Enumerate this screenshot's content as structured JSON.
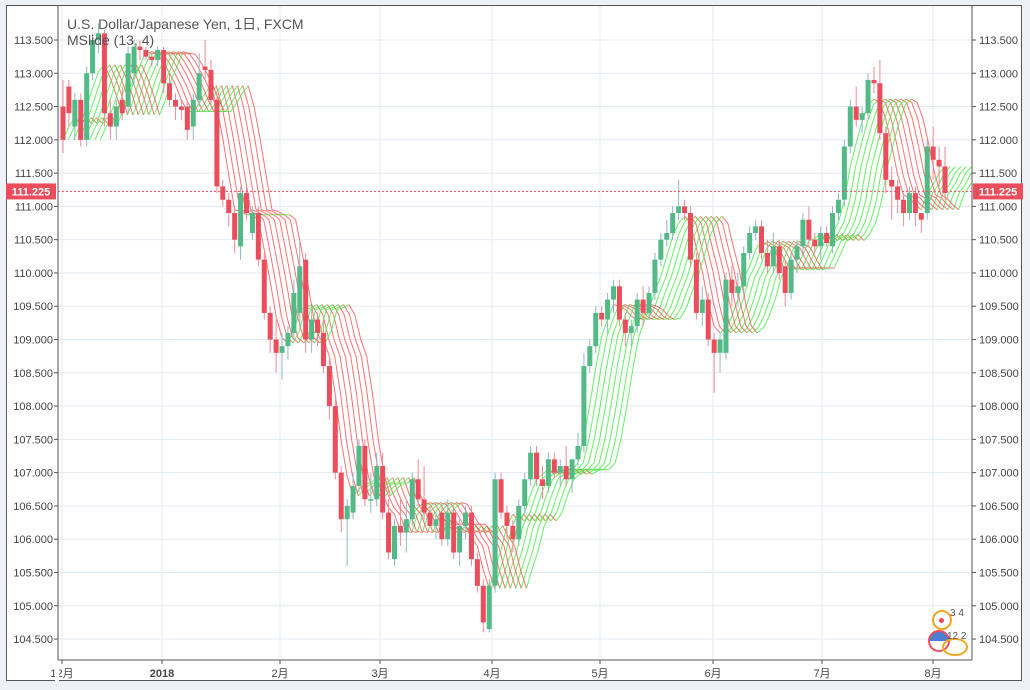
{
  "header": {
    "title": "U.S. Dollar/Japanese Yen, 1日, FXCM",
    "study": "MSlide (13, 4)"
  },
  "badges": {
    "events_top": "3 4",
    "events_bottom": "12 2"
  },
  "chart_data": {
    "type": "candlestick",
    "title": "U.S. Dollar/Japanese Yen, 1日, FXCM",
    "indicator": "MSlide (13, 4)",
    "ylim": [
      104.3,
      113.9
    ],
    "yticks": [
      "104.500",
      "105.000",
      "105.500",
      "106.000",
      "106.500",
      "107.000",
      "107.500",
      "108.000",
      "108.500",
      "109.000",
      "109.500",
      "110.000",
      "110.500",
      "111.000",
      "111.500",
      "112.000",
      "112.500",
      "113.000",
      "113.500"
    ],
    "xticks": [
      "12月",
      "2018",
      "2月",
      "3月",
      "4月",
      "5月",
      "6月",
      "7月",
      "8月"
    ],
    "grid": true,
    "last_price": "111.225",
    "colors": {
      "up": "#53b987",
      "down": "#eb4d5c",
      "band_up": "#33ee33",
      "band_down": "#ff4444",
      "price_line": "#eb4d5c"
    },
    "candles_ohlc": [
      [
        112.5,
        112.9,
        111.8,
        112.0
      ],
      [
        112.8,
        112.9,
        112.2,
        112.4
      ],
      [
        112.2,
        112.7,
        112.0,
        112.6
      ],
      [
        112.6,
        112.7,
        111.9,
        112.0
      ],
      [
        112.0,
        113.1,
        111.9,
        113.0
      ],
      [
        113.0,
        113.6,
        112.9,
        113.5
      ],
      [
        113.5,
        113.75,
        113.3,
        113.6
      ],
      [
        113.6,
        113.65,
        112.2,
        112.4
      ],
      [
        112.4,
        112.6,
        112.0,
        112.2
      ],
      [
        112.2,
        112.6,
        112.0,
        112.5
      ],
      [
        112.6,
        112.8,
        112.3,
        112.4
      ],
      [
        112.5,
        113.4,
        112.4,
        113.3
      ],
      [
        113.0,
        113.5,
        112.8,
        113.4
      ],
      [
        113.4,
        113.5,
        113.2,
        113.35
      ],
      [
        113.35,
        113.4,
        113.2,
        113.25
      ],
      [
        113.25,
        113.3,
        113.1,
        113.2
      ],
      [
        113.2,
        113.4,
        113.1,
        113.35
      ],
      [
        113.35,
        113.4,
        112.7,
        112.85
      ],
      [
        112.85,
        113.0,
        112.5,
        112.6
      ],
      [
        112.6,
        112.7,
        112.3,
        112.5
      ],
      [
        112.5,
        112.6,
        112.3,
        112.45
      ],
      [
        112.5,
        112.6,
        112.0,
        112.15
      ],
      [
        112.2,
        112.7,
        112.0,
        112.6
      ],
      [
        112.6,
        113.3,
        112.5,
        113.0
      ],
      [
        113.1,
        113.5,
        112.9,
        113.05
      ],
      [
        113.05,
        113.2,
        112.5,
        112.6
      ],
      [
        112.6,
        112.7,
        111.2,
        111.3
      ],
      [
        111.3,
        111.4,
        111.0,
        111.1
      ],
      [
        111.1,
        111.2,
        110.7,
        110.9
      ],
      [
        110.9,
        111.0,
        110.3,
        110.5
      ],
      [
        110.4,
        111.3,
        110.2,
        111.2
      ],
      [
        111.2,
        111.3,
        110.8,
        110.9
      ],
      [
        110.6,
        111.0,
        110.5,
        110.9
      ],
      [
        110.9,
        111.0,
        110.1,
        110.2
      ],
      [
        110.2,
        110.3,
        109.3,
        109.4
      ],
      [
        109.4,
        109.5,
        108.8,
        109.0
      ],
      [
        109.0,
        109.3,
        108.5,
        108.8
      ],
      [
        108.8,
        109.1,
        108.4,
        108.9
      ],
      [
        108.9,
        109.2,
        108.7,
        109.1
      ],
      [
        109.1,
        109.9,
        109.0,
        109.7
      ],
      [
        109.4,
        110.5,
        109.2,
        110.1
      ],
      [
        110.2,
        110.3,
        108.8,
        109.0
      ],
      [
        109.0,
        109.5,
        108.8,
        109.3
      ],
      [
        109.3,
        109.4,
        108.9,
        109.1
      ],
      [
        109.1,
        109.3,
        108.5,
        108.6
      ],
      [
        108.6,
        108.7,
        107.8,
        108.0
      ],
      [
        108.0,
        108.1,
        106.9,
        107.0
      ],
      [
        107.0,
        107.1,
        106.1,
        106.3
      ],
      [
        106.3,
        106.6,
        105.6,
        106.5
      ],
      [
        106.4,
        107.0,
        106.3,
        106.8
      ],
      [
        106.8,
        107.5,
        106.7,
        107.4
      ],
      [
        107.4,
        107.5,
        106.5,
        106.6
      ],
      [
        106.6,
        107.0,
        106.4,
        106.6
      ],
      [
        106.6,
        107.3,
        106.5,
        107.1
      ],
      [
        107.1,
        107.3,
        106.3,
        106.4
      ],
      [
        106.4,
        106.6,
        105.7,
        105.8
      ],
      [
        105.7,
        106.3,
        105.6,
        106.2
      ],
      [
        106.2,
        106.6,
        105.9,
        106.1
      ],
      [
        106.1,
        106.6,
        105.8,
        106.3
      ],
      [
        106.3,
        107.0,
        106.2,
        106.9
      ],
      [
        106.9,
        107.2,
        106.5,
        106.6
      ],
      [
        106.6,
        107.1,
        106.3,
        106.4
      ],
      [
        106.4,
        106.5,
        106.2,
        106.2
      ],
      [
        106.2,
        106.4,
        106.0,
        106.3
      ],
      [
        106.4,
        106.5,
        105.9,
        106.0
      ],
      [
        106.0,
        106.6,
        105.9,
        106.4
      ],
      [
        106.4,
        106.5,
        105.7,
        105.8
      ],
      [
        105.8,
        106.3,
        105.6,
        106.2
      ],
      [
        106.2,
        106.5,
        106.0,
        106.4
      ],
      [
        106.4,
        106.5,
        105.6,
        105.7
      ],
      [
        105.7,
        105.8,
        105.2,
        105.3
      ],
      [
        105.3,
        105.4,
        104.6,
        104.75
      ],
      [
        104.65,
        105.4,
        104.6,
        105.3
      ],
      [
        105.3,
        107.0,
        105.2,
        106.9
      ],
      [
        106.9,
        107.0,
        106.3,
        106.4
      ],
      [
        106.4,
        106.5,
        106.0,
        106.2
      ],
      [
        106.2,
        106.3,
        105.8,
        106.0
      ],
      [
        106.0,
        106.6,
        105.9,
        106.5
      ],
      [
        106.5,
        107.0,
        106.4,
        106.9
      ],
      [
        106.9,
        107.4,
        106.8,
        107.3
      ],
      [
        107.3,
        107.4,
        106.8,
        106.9
      ],
      [
        106.9,
        107.1,
        106.6,
        106.8
      ],
      [
        106.8,
        107.3,
        106.7,
        107.2
      ],
      [
        107.2,
        107.3,
        106.9,
        107.0
      ],
      [
        107.0,
        107.2,
        106.8,
        107.1
      ],
      [
        107.1,
        107.4,
        106.8,
        106.9
      ],
      [
        106.9,
        107.2,
        106.7,
        107.2
      ],
      [
        107.2,
        107.6,
        107.1,
        107.4
      ],
      [
        107.4,
        108.8,
        107.3,
        108.6
      ],
      [
        108.6,
        109.0,
        108.5,
        108.9
      ],
      [
        108.9,
        109.5,
        108.8,
        109.4
      ],
      [
        109.4,
        109.5,
        109.2,
        109.3
      ],
      [
        109.3,
        109.7,
        109.1,
        109.6
      ],
      [
        109.6,
        109.9,
        109.4,
        109.8
      ],
      [
        109.8,
        109.9,
        109.2,
        109.3
      ],
      [
        109.3,
        109.4,
        108.9,
        109.1
      ],
      [
        109.1,
        109.3,
        108.9,
        109.2
      ],
      [
        109.2,
        109.7,
        109.1,
        109.6
      ],
      [
        109.6,
        109.8,
        109.2,
        109.4
      ],
      [
        109.4,
        109.8,
        109.3,
        109.7
      ],
      [
        109.7,
        110.3,
        109.6,
        110.2
      ],
      [
        110.2,
        110.6,
        110.1,
        110.5
      ],
      [
        110.5,
        110.8,
        110.4,
        110.6
      ],
      [
        110.6,
        111.0,
        110.5,
        110.9
      ],
      [
        110.9,
        111.4,
        110.8,
        111.0
      ],
      [
        111.0,
        111.1,
        110.8,
        110.9
      ],
      [
        110.9,
        111.0,
        110.1,
        110.2
      ],
      [
        110.2,
        110.3,
        109.3,
        109.4
      ],
      [
        109.4,
        109.8,
        109.2,
        109.6
      ],
      [
        109.6,
        109.7,
        108.9,
        109.0
      ],
      [
        109.0,
        109.1,
        108.2,
        108.8
      ],
      [
        108.8,
        109.1,
        108.5,
        109.0
      ],
      [
        108.8,
        110.0,
        108.7,
        109.9
      ],
      [
        109.9,
        110.1,
        109.5,
        109.7
      ],
      [
        109.7,
        110.0,
        109.5,
        109.8
      ],
      [
        109.8,
        110.4,
        109.7,
        110.3
      ],
      [
        110.3,
        110.7,
        110.2,
        110.6
      ],
      [
        110.6,
        110.8,
        110.5,
        110.7
      ],
      [
        110.7,
        110.8,
        110.2,
        110.3
      ],
      [
        110.3,
        110.5,
        110.0,
        110.1
      ],
      [
        110.1,
        110.6,
        110.0,
        110.4
      ],
      [
        110.4,
        110.5,
        109.9,
        110.0
      ],
      [
        110.1,
        110.2,
        109.5,
        109.7
      ],
      [
        109.7,
        110.3,
        109.6,
        110.2
      ],
      [
        110.2,
        110.5,
        110.0,
        110.4
      ],
      [
        110.4,
        110.9,
        110.3,
        110.8
      ],
      [
        110.8,
        111.0,
        110.4,
        110.5
      ],
      [
        110.5,
        110.6,
        110.3,
        110.4
      ],
      [
        110.4,
        110.7,
        110.2,
        110.6
      ],
      [
        110.6,
        110.7,
        110.4,
        110.45
      ],
      [
        110.4,
        111.0,
        110.3,
        110.9
      ],
      [
        110.9,
        111.2,
        110.8,
        111.1
      ],
      [
        111.1,
        112.0,
        111.0,
        111.9
      ],
      [
        111.9,
        112.6,
        111.8,
        112.5
      ],
      [
        112.5,
        112.8,
        112.2,
        112.3
      ],
      [
        112.3,
        112.5,
        112.1,
        112.4
      ],
      [
        112.4,
        113.0,
        112.3,
        112.9
      ],
      [
        112.9,
        113.1,
        112.7,
        112.85
      ],
      [
        112.85,
        113.2,
        112.0,
        112.1
      ],
      [
        112.1,
        112.2,
        111.2,
        111.4
      ],
      [
        111.4,
        111.6,
        110.8,
        111.3
      ],
      [
        111.3,
        111.4,
        110.9,
        111.1
      ],
      [
        111.1,
        111.2,
        110.7,
        110.9
      ],
      [
        110.9,
        111.3,
        110.8,
        111.2
      ],
      [
        111.2,
        111.3,
        110.7,
        110.9
      ],
      [
        110.9,
        110.9,
        110.6,
        110.8
      ],
      [
        110.9,
        112.0,
        110.8,
        111.9
      ],
      [
        111.9,
        112.2,
        111.4,
        111.7
      ],
      [
        111.7,
        111.9,
        111.3,
        111.6
      ],
      [
        111.6,
        111.9,
        111.1,
        111.2
      ]
    ]
  }
}
